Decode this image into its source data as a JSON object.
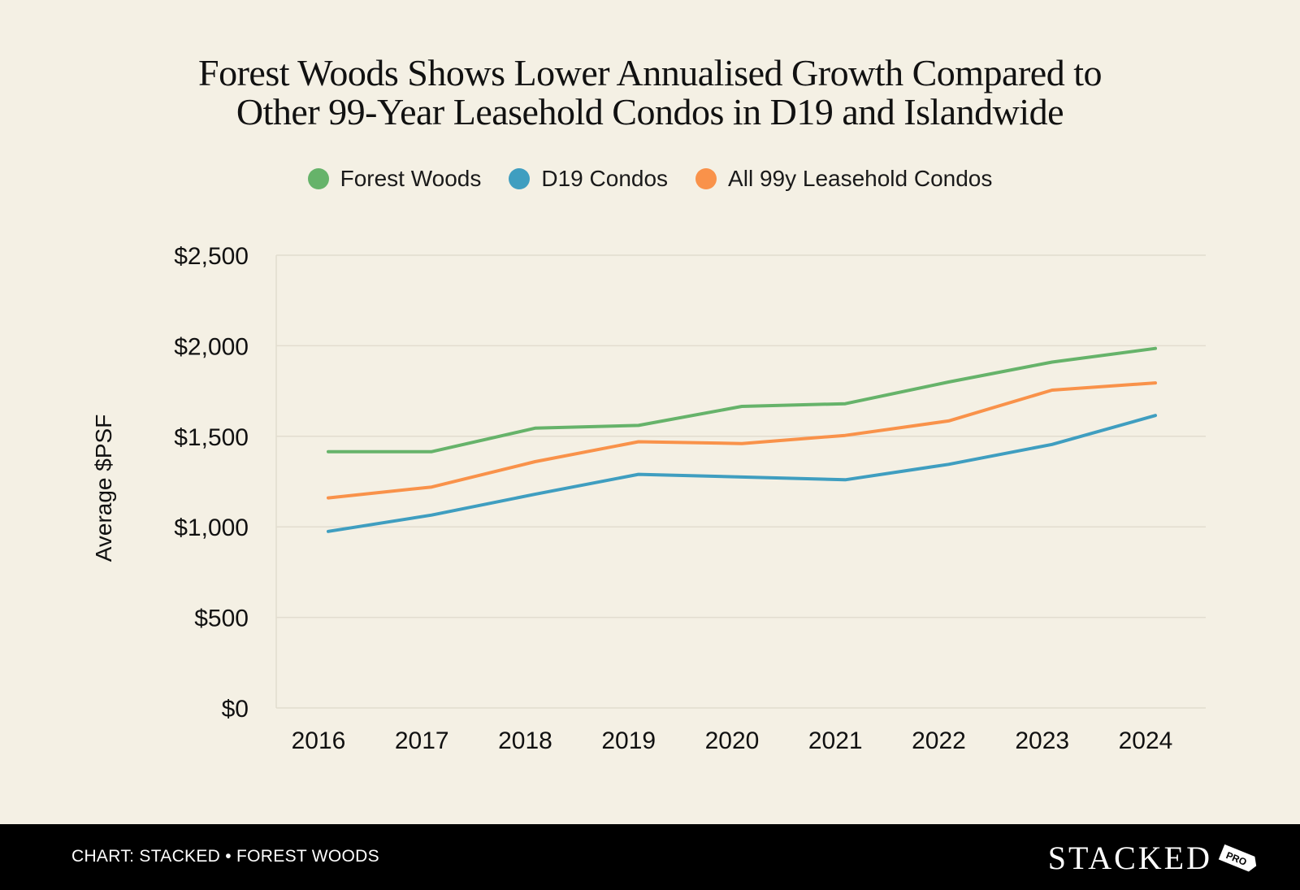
{
  "title_line1": "Forest Woods Shows Lower Annualised Growth Compared to",
  "title_line2": "Other 99-Year Leasehold Condos in D19 and Islandwide",
  "footer": {
    "source": "CHART: STACKED • FOREST WOODS",
    "logo_text": "STACKED",
    "logo_badge": "PRO"
  },
  "chart_data": {
    "type": "line",
    "ylabel": "Average $PSF",
    "xlabel": "",
    "ylim": [
      0,
      2500
    ],
    "yticks": [
      0,
      500,
      1000,
      1500,
      2000,
      2500
    ],
    "ytick_labels": [
      "$0",
      "$500",
      "$1,000",
      "$1,500",
      "$2,000",
      "$2,500"
    ],
    "categories": [
      "2016",
      "2017",
      "2018",
      "2019",
      "2020",
      "2021",
      "2022",
      "2023",
      "2024"
    ],
    "grid": true,
    "legend_position": "top-center",
    "series": [
      {
        "name": "Forest Woods",
        "color": "#66b36a",
        "values": [
          1415,
          1415,
          1545,
          1560,
          1665,
          1680,
          1800,
          1910,
          1985
        ]
      },
      {
        "name": "D19 Condos",
        "color": "#3f9ec0",
        "values": [
          975,
          1065,
          1180,
          1290,
          1275,
          1260,
          1345,
          1455,
          1615
        ]
      },
      {
        "name": "All 99y Leasehold Condos",
        "color": "#f9924a",
        "values": [
          1160,
          1220,
          1360,
          1470,
          1460,
          1505,
          1585,
          1755,
          1795
        ]
      }
    ]
  }
}
